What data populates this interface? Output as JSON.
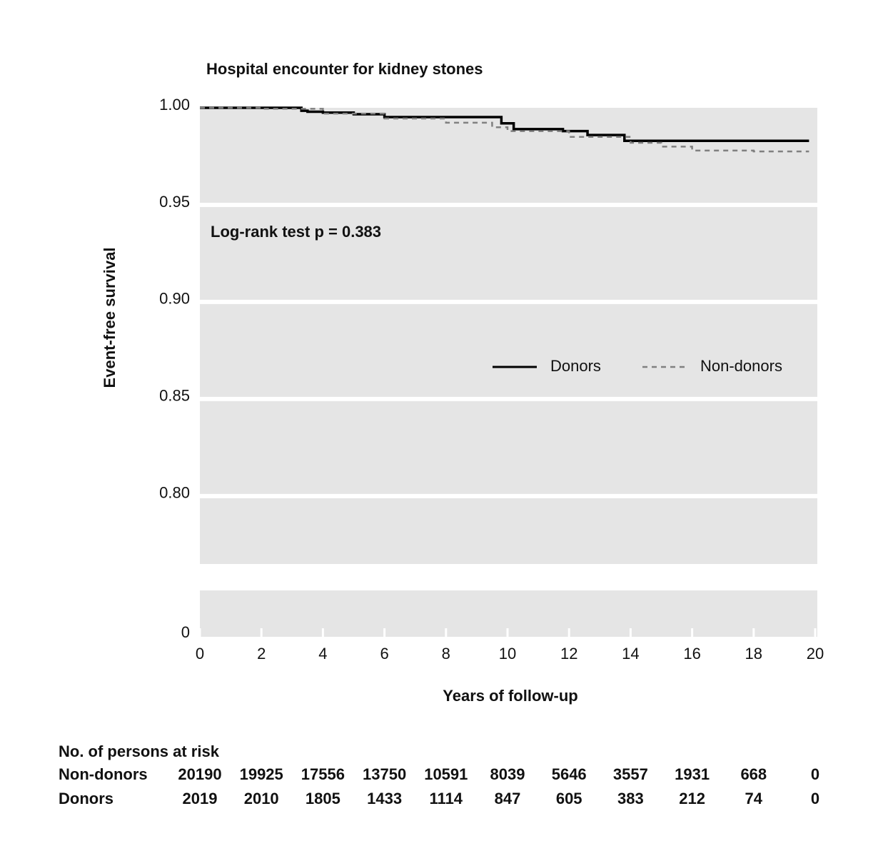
{
  "chart_data": {
    "type": "step",
    "title": "Hospital encounter for kidney stones",
    "xlabel": "Years of follow-up",
    "ylabel": "Event-free survival",
    "annotation": "Log-rank test p = 0.383",
    "xlim": [
      0,
      20
    ],
    "xticks": [
      0,
      2,
      4,
      6,
      8,
      10,
      12,
      14,
      16,
      18,
      20
    ],
    "ylim": [
      0,
      1
    ],
    "axis_break": [
      0.02,
      0.765
    ],
    "yticks": [
      0,
      {
        "value": 0.8,
        "label": "0.80"
      },
      0.85,
      {
        "value": 0.9,
        "label": "0.90"
      },
      0.95,
      {
        "value": 1,
        "label": "1.00"
      }
    ],
    "grid": true,
    "legend": "right",
    "series": [
      {
        "name": "Donors",
        "color": "#000000",
        "dash": false,
        "x": [
          0,
          3.3,
          3.5,
          4,
          5,
          6,
          9.8,
          10.2,
          11.8,
          12.6,
          13.8,
          19.8
        ],
        "values": [
          1.0,
          0.9985,
          0.998,
          0.9975,
          0.9967,
          0.9952,
          0.992,
          0.989,
          0.988,
          0.986,
          0.983,
          0.983
        ]
      },
      {
        "name": "Non-donors",
        "color": "#808080",
        "dash": true,
        "x": [
          0,
          2,
          4,
          6,
          8,
          9.5,
          10,
          12,
          14,
          15,
          16,
          18,
          19.8
        ],
        "values": [
          1.0,
          0.9995,
          0.997,
          0.9945,
          0.9923,
          0.99,
          0.988,
          0.985,
          0.982,
          0.98,
          0.978,
          0.9775,
          0.9775
        ]
      }
    ]
  },
  "risk_table": {
    "title": "No. of persons at risk",
    "rows": [
      {
        "name": "Non-donors",
        "values": [
          20190,
          19925,
          17556,
          13750,
          10591,
          8039,
          5646,
          3557,
          1931,
          668,
          0
        ]
      },
      {
        "name": "Donors",
        "values": [
          2019,
          2010,
          1805,
          1433,
          1114,
          847,
          605,
          383,
          212,
          74,
          0
        ]
      }
    ]
  }
}
